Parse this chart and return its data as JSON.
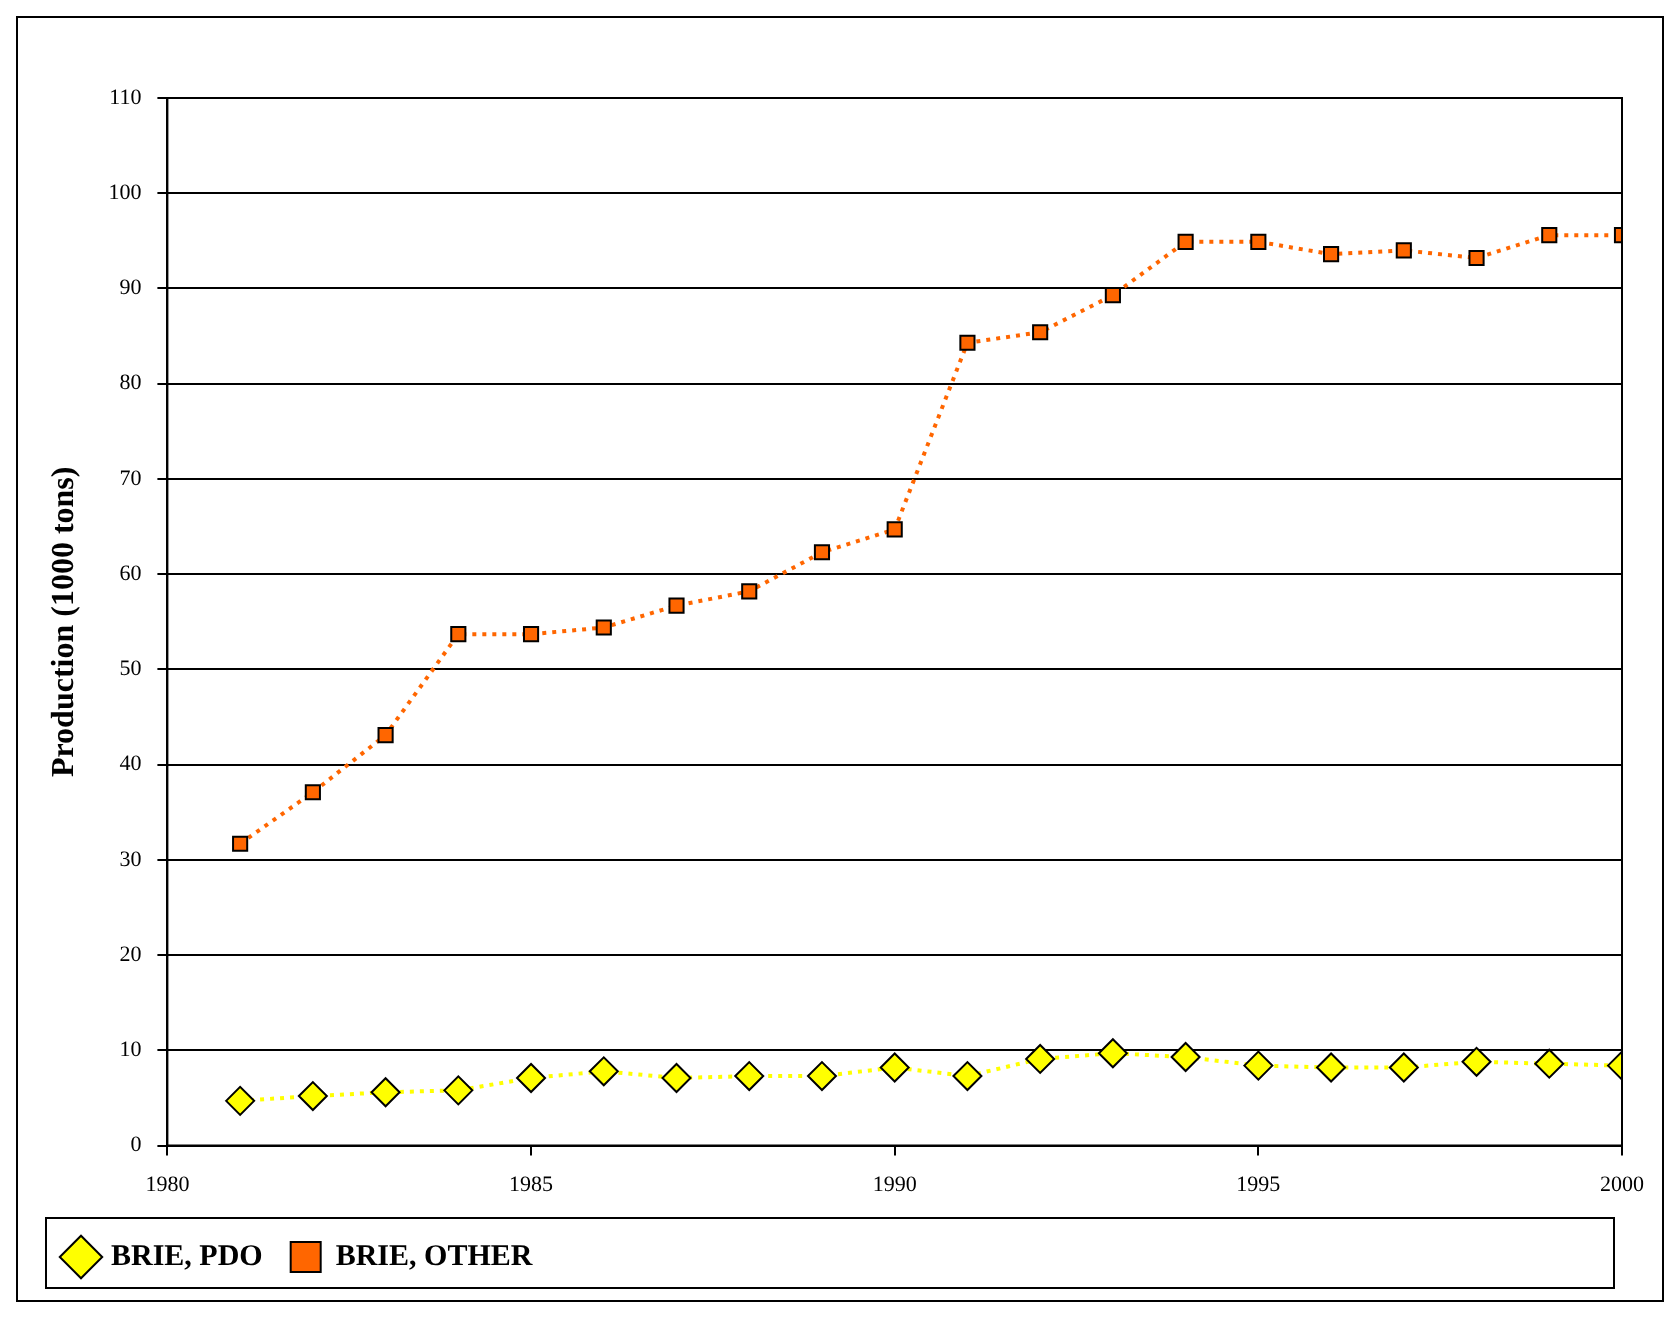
{
  "chart_data": {
    "type": "line",
    "ylabel": "Production (1000 tons)",
    "x": [
      1981,
      1982,
      1983,
      1984,
      1985,
      1986,
      1987,
      1988,
      1989,
      1990,
      1991,
      1992,
      1993,
      1994,
      1995,
      1996,
      1997,
      1998,
      1999,
      2000
    ],
    "series": [
      {
        "name": "BRIE, PDO",
        "color": "#ffff00",
        "marker": "diamond",
        "values": [
          4.7,
          5.2,
          5.6,
          5.8,
          7.1,
          7.8,
          7.1,
          7.3,
          7.3,
          8.2,
          7.3,
          9.1,
          9.7,
          9.3,
          8.4,
          8.2,
          8.2,
          8.8,
          8.6,
          8.4
        ]
      },
      {
        "name": "BRIE, OTHER",
        "color": "#ff6600",
        "marker": "square",
        "values": [
          31.7,
          37.1,
          43.1,
          53.7,
          53.7,
          54.4,
          56.7,
          58.2,
          62.3,
          64.7,
          84.3,
          85.4,
          89.3,
          94.9,
          94.9,
          93.6,
          94.0,
          93.2,
          95.6,
          95.6
        ]
      }
    ],
    "xlim": [
      1980,
      2000
    ],
    "xticks": [
      1980,
      1985,
      1990,
      1995,
      2000
    ],
    "ylim": [
      0,
      110
    ],
    "yticks": [
      0,
      10,
      20,
      30,
      40,
      50,
      60,
      70,
      80,
      90,
      100,
      110
    ],
    "grid": "y",
    "legend": "bottom left",
    "line_style": "dotted"
  }
}
